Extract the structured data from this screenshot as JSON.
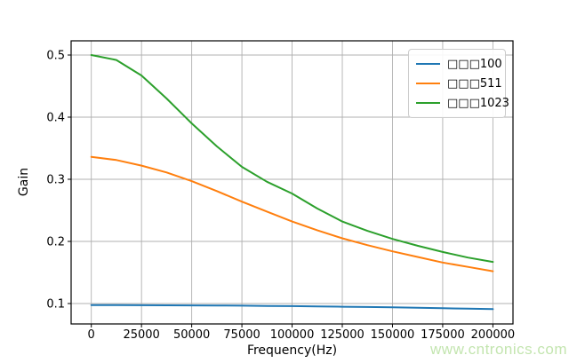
{
  "watermark": "www.cntronics.com",
  "colors": {
    "blue": "#1f77b4",
    "orange": "#ff7f0e",
    "green": "#2ca02c",
    "grid": "#b0b0b0",
    "spine": "#000000",
    "watermark": "#c3e5af"
  },
  "chart_data": {
    "type": "line",
    "xlabel": "Frequency(Hz)",
    "ylabel": "Gain",
    "grid": true,
    "legend_position": "upper right",
    "xlim": [
      -10000,
      210000
    ],
    "ylim": [
      0.067,
      0.523
    ],
    "x_ticks": [
      0,
      25000,
      50000,
      75000,
      100000,
      125000,
      150000,
      175000,
      200000
    ],
    "x_tick_labels": [
      "0",
      "25000",
      "50000",
      "75000",
      "100000",
      "125000",
      "150000",
      "175000",
      "200000"
    ],
    "y_ticks": [
      0.1,
      0.2,
      0.3,
      0.4,
      0.5
    ],
    "y_tick_labels": [
      "0.1",
      "0.2",
      "0.3",
      "0.4",
      "0.5"
    ],
    "x": [
      0,
      12500,
      25000,
      37500,
      50000,
      62500,
      75000,
      87500,
      100000,
      112500,
      125000,
      137500,
      150000,
      162500,
      175000,
      187500,
      200000
    ],
    "series": [
      {
        "name": "□□□100",
        "color": "#1f77b4",
        "values": [
          0.0975,
          0.0974,
          0.0973,
          0.0972,
          0.097,
          0.0968,
          0.0965,
          0.0962,
          0.0958,
          0.0954,
          0.0949,
          0.0944,
          0.0938,
          0.0932,
          0.0925,
          0.0918,
          0.091
        ]
      },
      {
        "name": "□□□511",
        "color": "#ff7f0e",
        "values": [
          0.336,
          0.331,
          0.322,
          0.311,
          0.297,
          0.281,
          0.264,
          0.248,
          0.232,
          0.218,
          0.205,
          0.194,
          0.184,
          0.175,
          0.166,
          0.159,
          0.152
        ]
      },
      {
        "name": "□□□1023",
        "color": "#2ca02c",
        "values": [
          0.5,
          0.492,
          0.467,
          0.43,
          0.39,
          0.353,
          0.32,
          0.296,
          0.277,
          0.253,
          0.232,
          0.217,
          0.204,
          0.193,
          0.183,
          0.174,
          0.167
        ]
      }
    ]
  }
}
